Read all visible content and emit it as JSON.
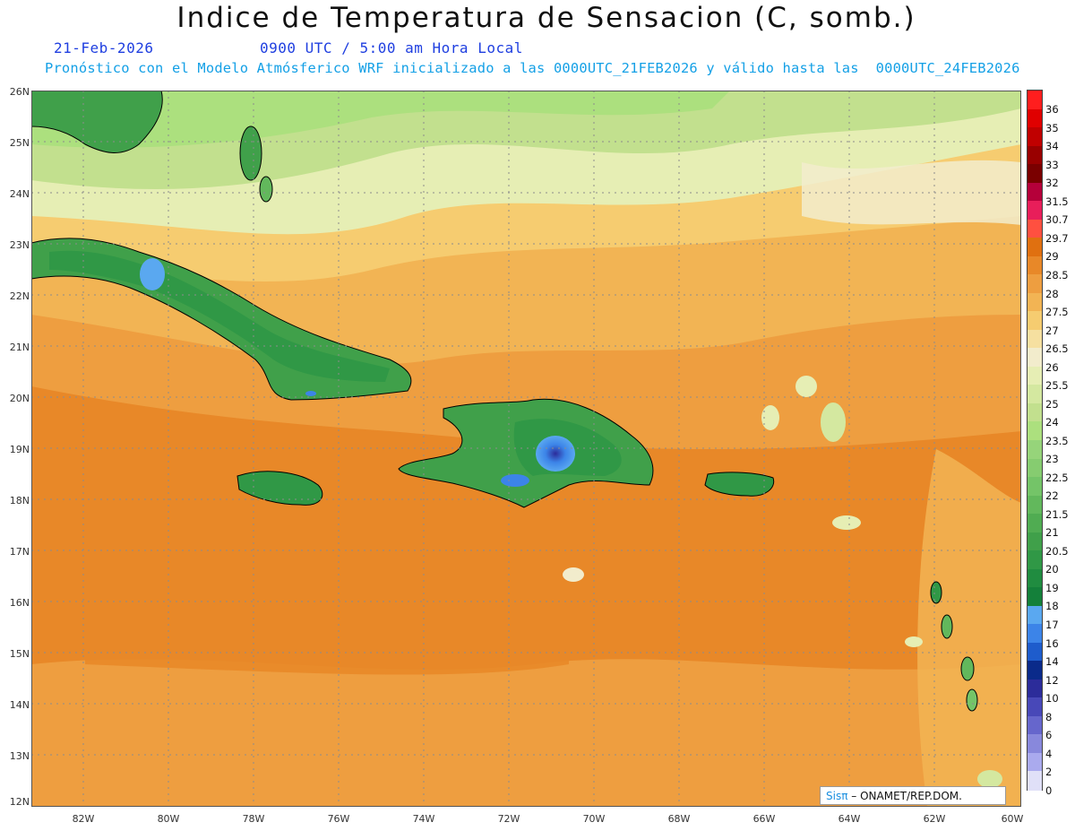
{
  "title": "Indice de Temperatura de Sensacion (C, somb.)",
  "date": "21-Feb-2026",
  "time": "0900 UTC / 5:00 am Hora Local",
  "forecast": "Pronóstico con el Modelo Atmósferico WRF inicializado a las 0000UTC_21FEB2026 y válido hasta las  0000UTC_24FEB2026",
  "lon_labels": [
    "82W",
    "80W",
    "78W",
    "76W",
    "74W",
    "72W",
    "70W",
    "68W",
    "66W",
    "64W",
    "62W",
    "60W"
  ],
  "lat_labels": [
    "26N",
    "25N",
    "24N",
    "23N",
    "22N",
    "21N",
    "20N",
    "19N",
    "18N",
    "17N",
    "16N",
    "15N",
    "14N",
    "13N",
    "12N"
  ],
  "extent": {
    "lon_min": -83.2,
    "lon_max": -60.0,
    "lat_min": 11.85,
    "lat_max": 26.0
  },
  "legend": {
    "labels": [
      "36",
      "35",
      "34",
      "33",
      "32",
      "31.5",
      "30.7",
      "29.7",
      "29",
      "28.5",
      "28",
      "27.5",
      "27",
      "26.5",
      "26",
      "25.5",
      "25",
      "24",
      "23.5",
      "23",
      "22.5",
      "22",
      "21.5",
      "21",
      "20.5",
      "20",
      "19",
      "18",
      "17",
      "16",
      "14",
      "12",
      "10",
      "8",
      "6",
      "4",
      "2",
      "0"
    ],
    "colors": [
      "#ff1e1e",
      "#e00000",
      "#c00000",
      "#990000",
      "#7a0000",
      "#b5003a",
      "#e81e5a",
      "#ff5040",
      "#e07010",
      "#e88828",
      "#ee9e40",
      "#f2b454",
      "#f6cc70",
      "#f6e0a0",
      "#f2eccc",
      "#e6eeb4",
      "#d4e8a0",
      "#c2e08e",
      "#ace07e",
      "#96d47a",
      "#86cc70",
      "#74c468",
      "#62b85c",
      "#50ac52",
      "#40a04a",
      "#309846",
      "#208c40",
      "#14803a",
      "#5aa8f0",
      "#3c84e8",
      "#1e5ccc",
      "#0a2a8a",
      "#2c2c9a",
      "#4848b8",
      "#6666cc",
      "#8888dc",
      "#aaaaee",
      "#e0e0f8"
    ]
  },
  "credit": {
    "brand": "Sisπ",
    "text": "– ONAMET/REP.DOM."
  }
}
